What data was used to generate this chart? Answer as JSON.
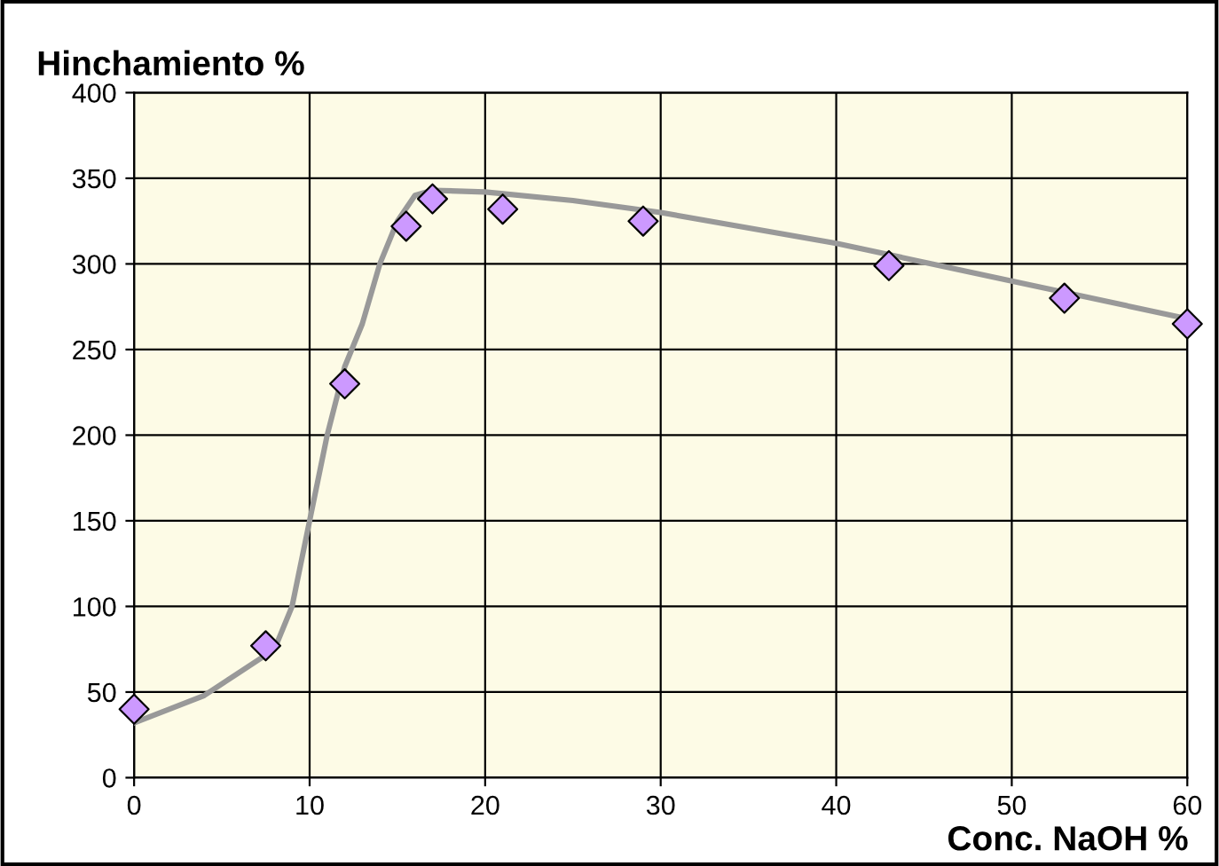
{
  "chart_data": {
    "type": "scatter",
    "xlabel": "Conc. NaOH %",
    "ylabel": "Hinchamiento %",
    "xlim": [
      0,
      60
    ],
    "xticks": [
      0,
      10,
      20,
      30,
      40,
      50,
      60
    ],
    "ylim": [
      0,
      400
    ],
    "yticks": [
      0,
      50,
      100,
      150,
      200,
      250,
      300,
      350,
      400
    ],
    "grid": true,
    "series": [
      {
        "type": "line",
        "color": "#999999",
        "marker": "none",
        "line_style": "solid",
        "x": [
          0,
          4,
          8,
          9,
          10,
          11,
          12,
          13,
          14,
          15,
          16,
          17,
          20,
          25,
          30,
          40,
          50,
          60
        ],
        "values": [
          32,
          48,
          75,
          100,
          150,
          200,
          240,
          265,
          300,
          325,
          340,
          343,
          342,
          337,
          330,
          312,
          290,
          268
        ]
      },
      {
        "color": "#cc99ff",
        "marker": "diamond",
        "x": [
          0,
          7.5,
          12,
          15.5,
          17,
          21,
          29,
          43,
          53,
          60
        ],
        "values": [
          40,
          77,
          230,
          322,
          338,
          332,
          325,
          299,
          280,
          265
        ]
      }
    ]
  }
}
